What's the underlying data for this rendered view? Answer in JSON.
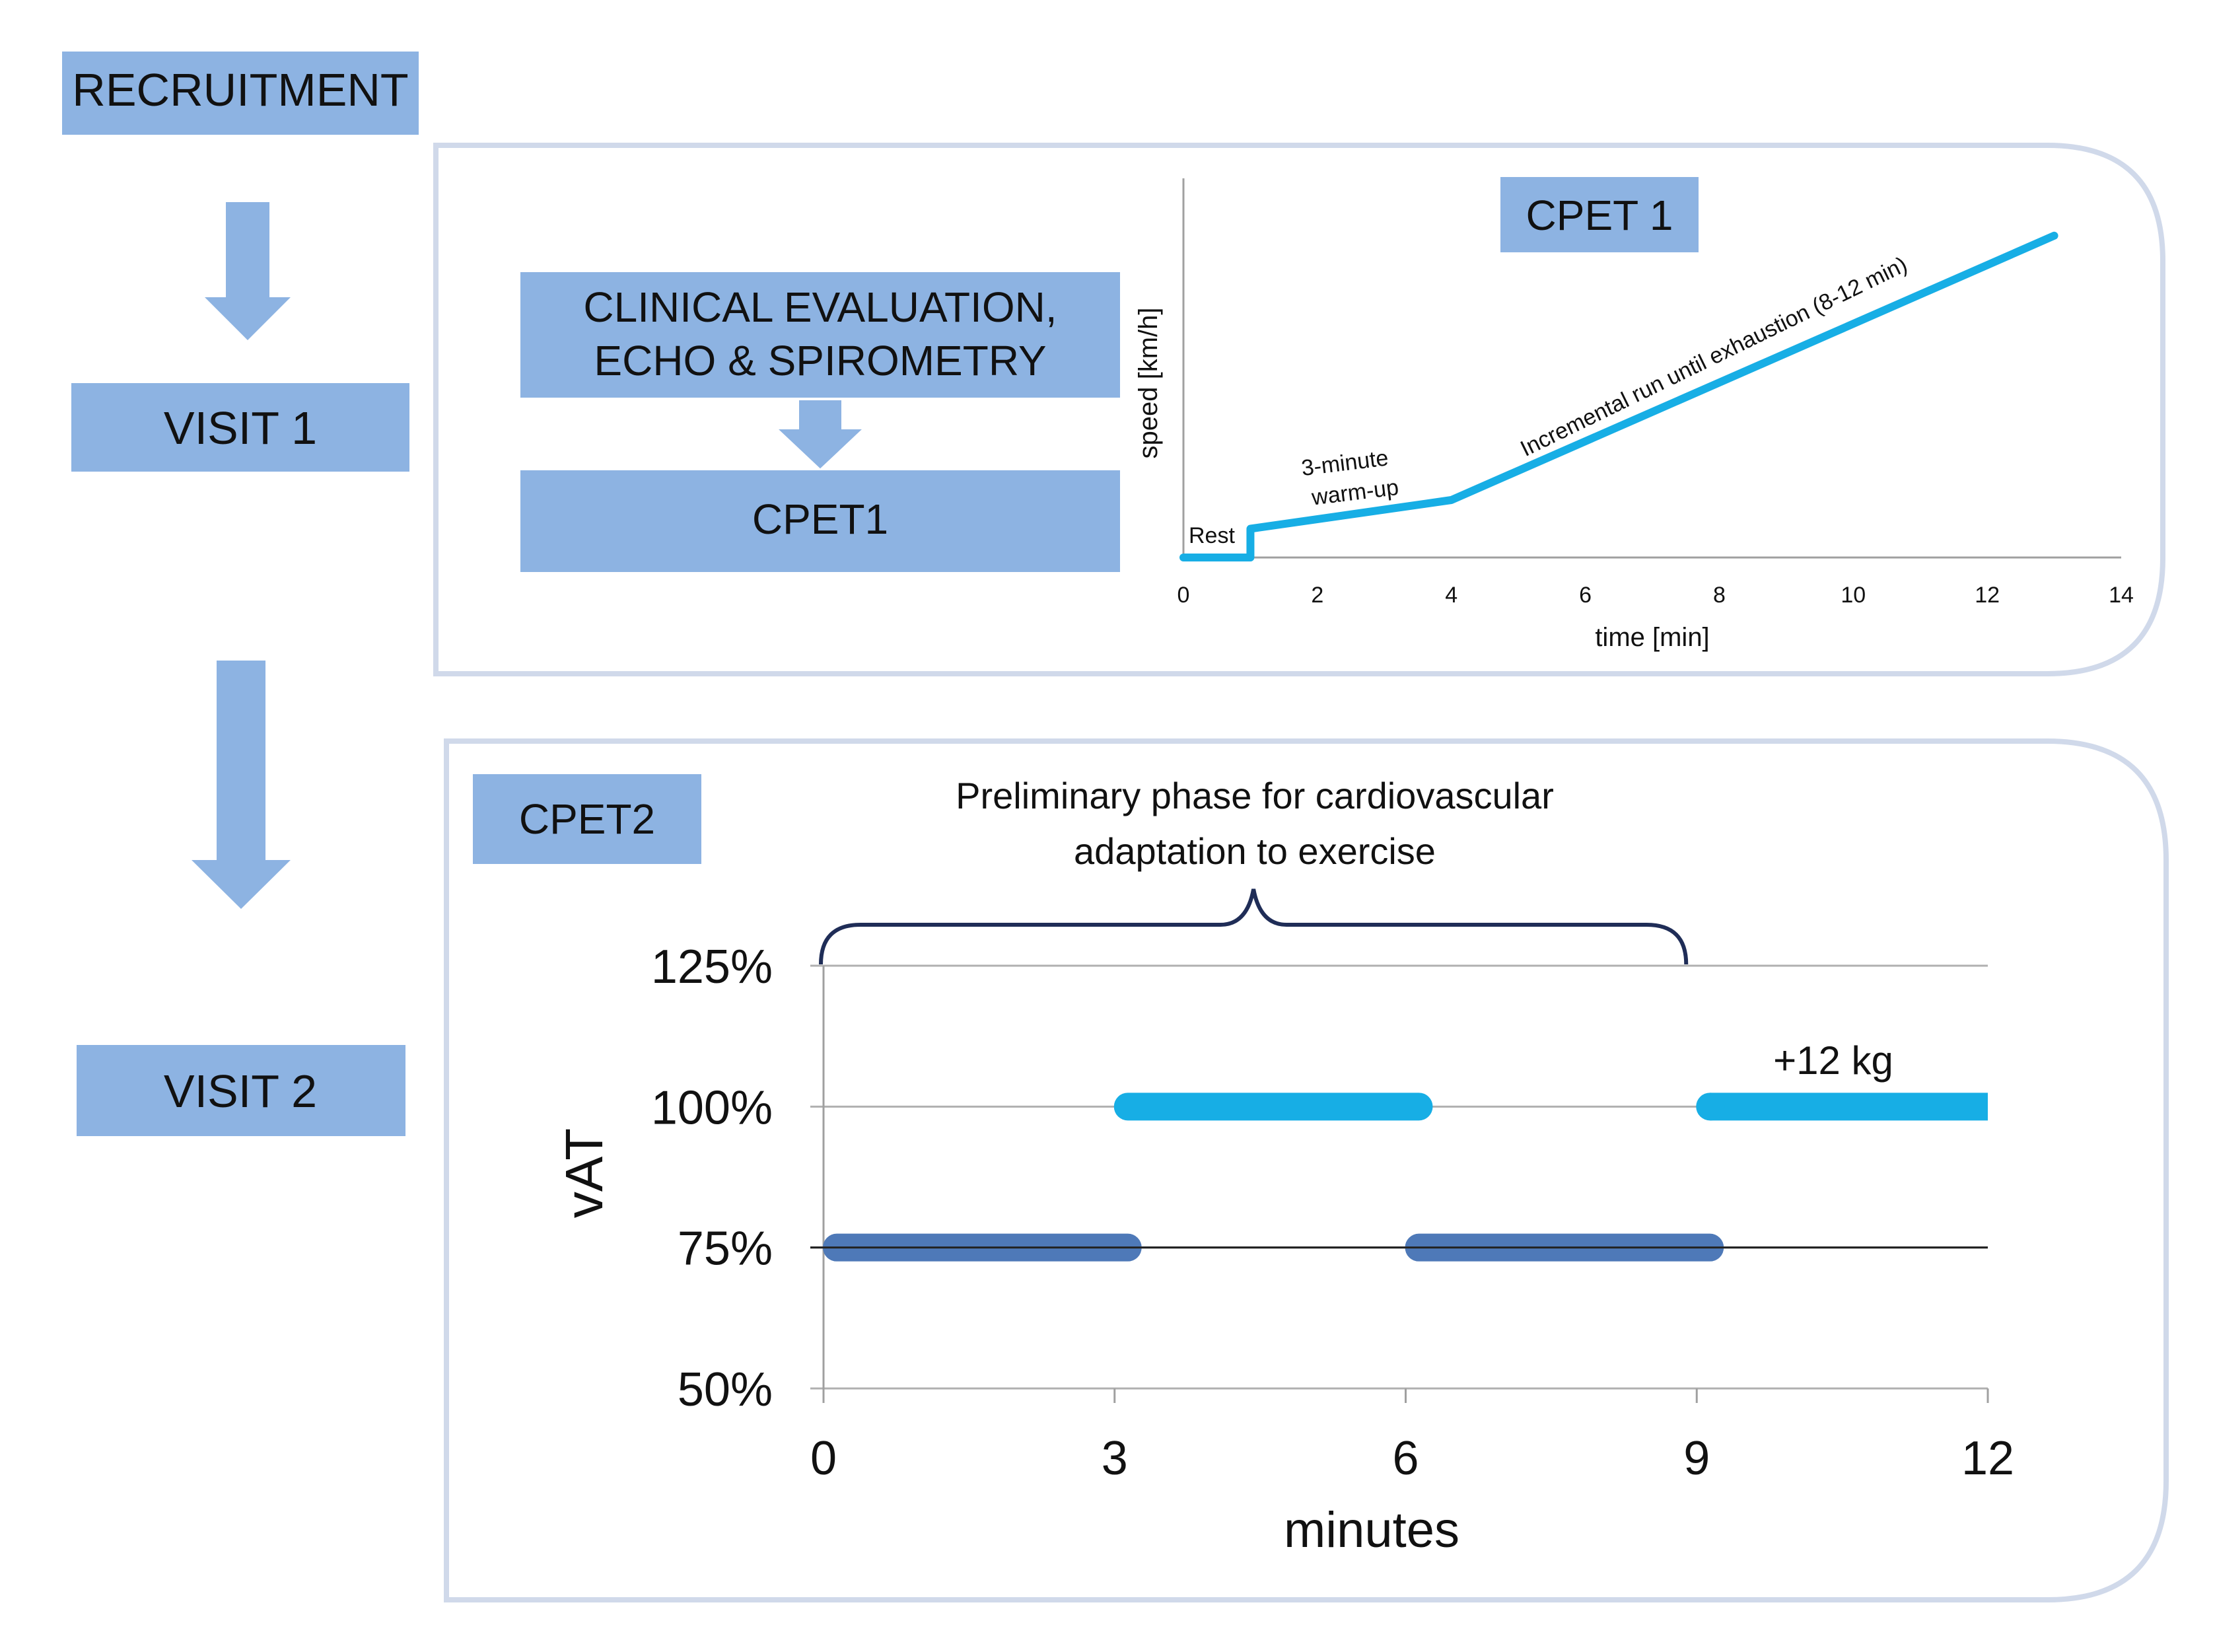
{
  "flow": {
    "recruitment": "RECRUITMENT",
    "visit1": "VISIT 1",
    "visit2": "VISIT 2",
    "clinical_line1": "CLINICAL EVALUATION,",
    "clinical_line2": "ECHO & SPIROMETRY",
    "cpet1_box": "CPET1",
    "cpet1_tag": "CPET 1",
    "cpet2_tag": "CPET2",
    "colors": {
      "box": "#8db3e2",
      "arrow": "#8db3e2",
      "panel_border": "#d0d9ea"
    }
  },
  "chart_data": [
    {
      "type": "line",
      "xlabel": "time [min]",
      "ylabel": "speed [km/h]",
      "xlim": [
        0,
        14
      ],
      "x_ticks": [
        "0",
        "2",
        "4",
        "6",
        "8",
        "10",
        "12",
        "14"
      ],
      "series": [
        {
          "x": [
            0,
            1,
            1,
            4,
            13
          ],
          "y": [
            0,
            0,
            0.5,
            1.0,
            5.6
          ]
        }
      ],
      "annotations": {
        "rest": "Rest",
        "warmup_line1": "3-minute",
        "warmup_line2": "warm-up",
        "incremental": "Incremental run until exhaustion (8-12 min)"
      },
      "color": "#17aee5"
    },
    {
      "type": "bar",
      "orientation": "horizontal-segments",
      "xlabel": "minutes",
      "ylabel": "vAT",
      "xlim": [
        0,
        12
      ],
      "x_ticks": [
        "0",
        "3",
        "6",
        "9",
        "12"
      ],
      "y_ticks": [
        "50%",
        "75%",
        "100%",
        "125%"
      ],
      "y_tick_values": [
        50,
        75,
        100,
        125
      ],
      "segments": [
        {
          "x0": 0,
          "x1": 3,
          "level": 75,
          "color": "#4e79b8"
        },
        {
          "x0": 3,
          "x1": 6,
          "level": 100,
          "color": "#17aee5"
        },
        {
          "x0": 6,
          "x1": 9,
          "level": 75,
          "color": "#4e79b8"
        },
        {
          "x0": 9,
          "x1": 12,
          "level": 100,
          "color": "#17aee5"
        }
      ],
      "annotations": {
        "phase_line1": "Preliminary phase for cardiovascular",
        "phase_line2": "adaptation to exercise",
        "phase_range": [
          0,
          9
        ],
        "load": "+12 kg"
      }
    }
  ]
}
